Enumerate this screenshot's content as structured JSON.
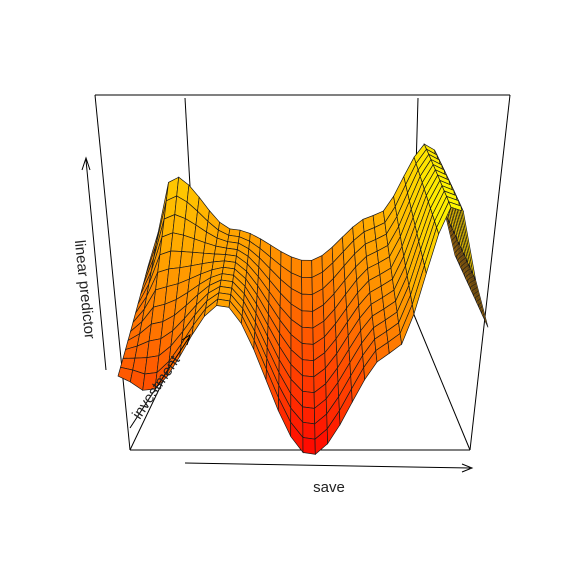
{
  "chart_data": {
    "type": "surface",
    "title": "",
    "xlabel": "save",
    "ylabel": "investment",
    "zlabel": "linear predictor",
    "colors": {
      "low": "#ff0000",
      "mid": "#ff8c00",
      "high": "#ffff00",
      "mesh": "#1a1a1a",
      "box": "#000000"
    },
    "grid_columns": 30,
    "grid_rows": 12,
    "surface_front_profile": [
      -0.36,
      -0.48,
      0.2,
      -0.98,
      -0.18,
      1.0,
      0.02
    ],
    "surface_back_profile": [
      -0.06,
      0.58,
      0.2,
      -0.02,
      0.3,
      0.82,
      0.02
    ],
    "surface_peak_x": [
      0.08,
      0.28,
      0.52,
      0.74,
      0.92
    ]
  }
}
